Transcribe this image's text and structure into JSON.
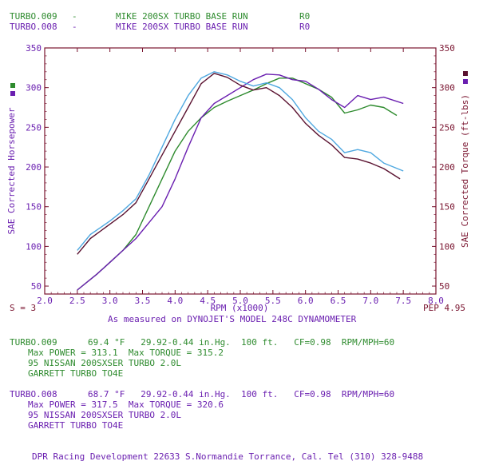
{
  "colors": {
    "run1": "#2e8b2e",
    "run2": "#6a1fb0",
    "hp_run1_line": "#4fa8e0",
    "hp_run2_line": "#5a1230",
    "frame": "#7a1530",
    "text": "#6a1fb0"
  },
  "header": {
    "run1": {
      "name": "TURBO.009",
      "dash": "-",
      "desc": "MIKE 200SX TURBO BASE RUN",
      "code": "R0"
    },
    "run2": {
      "name": "TURBO.008",
      "dash": "-",
      "desc": "MIKE 200SX TURBO BASE RUN",
      "code": "R0"
    }
  },
  "footer_left": "S = 3",
  "footer_right": "PEP 4.95",
  "subtitle": "As measured on DYNOJET'S MODEL 248C DYNAMOMETER",
  "runs": [
    {
      "name": "TURBO.009",
      "conditions": "69.4 °F   29.92-0.44 in.Hg.  100 ft.   CF=0.98  RPM/MPH=60",
      "max_line": "Max POWER = 313.1  Max TORQUE = 315.2",
      "vehicle": "95 NISSAN 200SXSER TURBO 2.0L",
      "turbo": "GARRETT TURBO TO4E"
    },
    {
      "name": "TURBO.008",
      "conditions": "68.7 °F   29.92-0.44 in.Hg.  100 ft.   CF=0.98  RPM/MPH=60",
      "max_line": "Max POWER = 317.5  Max TORQUE = 320.6",
      "vehicle": "95 NISSAN 200SXSER TURBO 2.0L",
      "turbo": "GARRETT TURBO TO4E"
    }
  ],
  "credit": "DPR Racing Development 22633 S.Normandie Torrance, Cal. Tel (310) 328-9488",
  "chart_data": {
    "type": "line",
    "xlabel": "RPM (x1000)",
    "ylabel_left": "SAE Corrected Horsepower",
    "ylabel_right": "SAE Corrected Torque (ft-lbs)",
    "xlim": [
      2.0,
      8.0
    ],
    "ylim": [
      40,
      350
    ],
    "x_ticks": [
      2.0,
      2.5,
      3.0,
      3.5,
      4.0,
      4.5,
      5.0,
      5.5,
      6.0,
      6.5,
      7.0,
      7.5,
      8.0
    ],
    "x_tick_labels": [
      "2.0",
      "2.5",
      "3.0",
      "3.5",
      "4.0",
      "4.5",
      "5.0",
      "5.5",
      "6.0",
      "6.5",
      "7.0",
      "7.5",
      "8.0"
    ],
    "y_ticks": [
      50,
      100,
      150,
      200,
      250,
      300,
      350
    ],
    "y_tick_labels": [
      "50",
      "100",
      "150",
      "200",
      "250",
      "300",
      "350"
    ],
    "grid": false,
    "series": [
      {
        "name": "TURBO.009 Power",
        "color": "#2e8b2e",
        "x": [
          2.5,
          2.8,
          3.0,
          3.2,
          3.4,
          3.6,
          3.8,
          4.0,
          4.2,
          4.4,
          4.6,
          4.8,
          5.0,
          5.2,
          5.4,
          5.6,
          5.8,
          6.0,
          6.2,
          6.4,
          6.6,
          6.8,
          7.0,
          7.2,
          7.4
        ],
        "y": [
          45,
          65,
          80,
          95,
          115,
          150,
          185,
          220,
          245,
          262,
          275,
          283,
          290,
          297,
          305,
          312,
          312,
          305,
          298,
          288,
          268,
          272,
          278,
          275,
          265
        ]
      },
      {
        "name": "TURBO.008 Power",
        "color": "#6a1fb0",
        "x": [
          2.5,
          2.8,
          3.0,
          3.2,
          3.4,
          3.6,
          3.8,
          4.0,
          4.2,
          4.4,
          4.6,
          4.8,
          5.0,
          5.2,
          5.4,
          5.6,
          5.8,
          6.0,
          6.2,
          6.4,
          6.6,
          6.8,
          7.0,
          7.2,
          7.5
        ],
        "y": [
          45,
          65,
          80,
          95,
          110,
          130,
          150,
          185,
          225,
          262,
          280,
          290,
          300,
          310,
          317,
          316,
          310,
          308,
          298,
          285,
          275,
          290,
          285,
          288,
          280
        ]
      },
      {
        "name": "TURBO.009 Torque",
        "color": "#4fa8e0",
        "x": [
          2.5,
          2.7,
          3.0,
          3.2,
          3.4,
          3.6,
          3.8,
          4.0,
          4.2,
          4.4,
          4.6,
          4.8,
          5.0,
          5.2,
          5.4,
          5.6,
          5.8,
          6.0,
          6.2,
          6.4,
          6.6,
          6.8,
          7.0,
          7.2,
          7.5
        ],
        "y": [
          95,
          115,
          132,
          145,
          160,
          190,
          225,
          260,
          290,
          312,
          320,
          316,
          308,
          302,
          306,
          300,
          285,
          262,
          245,
          235,
          218,
          222,
          218,
          205,
          195
        ]
      },
      {
        "name": "TURBO.008 Torque",
        "color": "#5a1230",
        "x": [
          2.5,
          2.7,
          3.0,
          3.2,
          3.4,
          3.6,
          3.8,
          4.0,
          4.2,
          4.4,
          4.6,
          4.8,
          5.0,
          5.2,
          5.4,
          5.6,
          5.8,
          6.0,
          6.2,
          6.4,
          6.6,
          6.8,
          7.0,
          7.2,
          7.45
        ],
        "y": [
          90,
          110,
          128,
          140,
          155,
          185,
          215,
          245,
          275,
          305,
          318,
          313,
          303,
          297,
          300,
          290,
          275,
          255,
          240,
          228,
          212,
          210,
          205,
          198,
          185
        ]
      }
    ]
  }
}
